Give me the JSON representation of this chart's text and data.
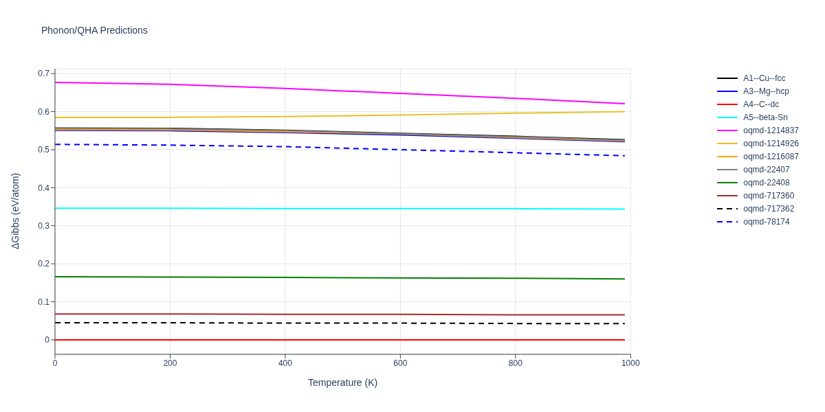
{
  "chart_data": {
    "type": "line",
    "title": "Phonon/QHA Predictions",
    "xlabel": "Temperature (K)",
    "ylabel": "ΔGibbs (eV/atom)",
    "x": [
      0,
      200,
      400,
      600,
      800,
      990
    ],
    "xlim": [
      0,
      1000
    ],
    "xticks": [
      0,
      200,
      400,
      600,
      800,
      1000
    ],
    "ylim": [
      -0.038,
      0.713
    ],
    "yticks": [
      0,
      0.1,
      0.2,
      0.3,
      0.4,
      0.5,
      0.6,
      0.7
    ],
    "grid": true,
    "legend": "right",
    "marker": "none",
    "series": [
      {
        "name": "A1--Cu--fcc",
        "color": "#000000",
        "values": [
          0.557,
          0.556,
          0.551,
          0.543,
          0.535,
          0.526
        ]
      },
      {
        "name": "A3--Mg--hcp",
        "color": "#0000ff",
        "values": [
          0.551,
          0.55,
          0.545,
          0.539,
          0.53,
          0.521
        ]
      },
      {
        "name": "A4--C--dc",
        "color": "#ff0000",
        "values": [
          0,
          0,
          0,
          0,
          0,
          0
        ]
      },
      {
        "name": "A5--beta-Sn",
        "color": "#00ffff",
        "values": [
          0.346,
          0.346,
          0.345,
          0.345,
          0.345,
          0.344
        ]
      },
      {
        "name": "oqmd-1214837",
        "color": "#ff00ff",
        "values": [
          0.677,
          0.672,
          0.661,
          0.648,
          0.635,
          0.621
        ]
      },
      {
        "name": "oqmd-1214926",
        "color": "#e6c229",
        "values": [
          0.585,
          0.585,
          0.587,
          0.591,
          0.596,
          0.6
        ]
      },
      {
        "name": "oqmd-1216087",
        "color": "#ffa500",
        "values": [
          0.553,
          0.552,
          0.547,
          0.541,
          0.532,
          0.523
        ]
      },
      {
        "name": "oqmd-22407",
        "color": "#808080",
        "values": [
          0.556,
          0.555,
          0.55,
          0.542,
          0.534,
          0.525
        ]
      },
      {
        "name": "oqmd-22408",
        "color": "#008000",
        "values": [
          0.166,
          0.165,
          0.164,
          0.163,
          0.162,
          0.16
        ]
      },
      {
        "name": "oqmd-717360",
        "color": "#a52a2a",
        "values": [
          0.068,
          0.068,
          0.067,
          0.067,
          0.066,
          0.066
        ]
      },
      {
        "name": "oqmd-717362",
        "color": "#000000",
        "line_style": "dashed",
        "values": [
          0.045,
          0.045,
          0.044,
          0.044,
          0.043,
          0.043
        ]
      },
      {
        "name": "oqmd-78174",
        "color": "#0000ff",
        "line_style": "dashed",
        "values": [
          0.514,
          0.512,
          0.508,
          0.5,
          0.492,
          0.484
        ]
      }
    ]
  }
}
